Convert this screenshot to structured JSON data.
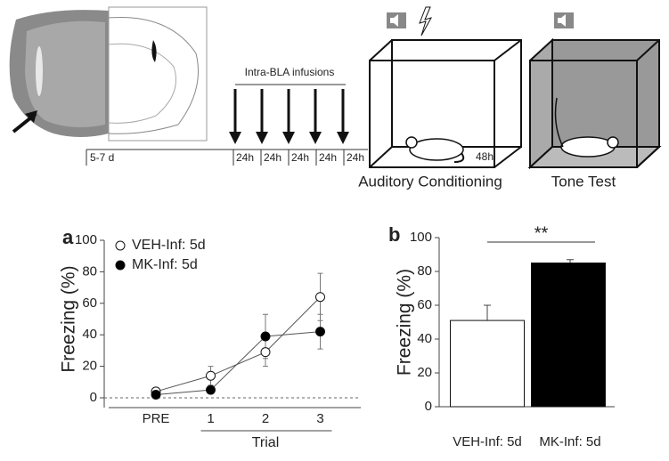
{
  "schematic": {
    "infusion_label": "Intra-BLA infusions",
    "baseline": "5-7 d",
    "intervals": [
      "24h",
      "24h",
      "24h",
      "24h",
      "24h"
    ],
    "delay": "48h",
    "conditioning": "Auditory Conditioning",
    "test": "Tone Test"
  },
  "chart_data": [
    {
      "type": "line",
      "panel": "a",
      "categories": [
        "PRE",
        "1",
        "2",
        "3"
      ],
      "x_label": "Trial",
      "y_label": "Freezing (%)",
      "ylim": [
        0,
        100
      ],
      "yticks": [
        0,
        20,
        40,
        60,
        80,
        100
      ],
      "series": [
        {
          "name": "VEH-Inf: 5d",
          "color": "#ffffff",
          "values": [
            4,
            14,
            29,
            64
          ],
          "errors": [
            1,
            6,
            9,
            15
          ]
        },
        {
          "name": "MK-Inf: 5d",
          "color": "#000000",
          "values": [
            2,
            5,
            39,
            42
          ],
          "errors": [
            1,
            1,
            14,
            11
          ]
        }
      ]
    },
    {
      "type": "bar",
      "panel": "b",
      "categories": [
        "VEH-Inf: 5d",
        "MK-Inf: 5d"
      ],
      "y_label": "Freezing (%)",
      "ylim": [
        0,
        100
      ],
      "yticks": [
        0,
        20,
        40,
        60,
        80,
        100
      ],
      "values": [
        51,
        85
      ],
      "errors": [
        9,
        2
      ],
      "colors": [
        "#ffffff",
        "#000000"
      ],
      "significance": "**"
    }
  ]
}
